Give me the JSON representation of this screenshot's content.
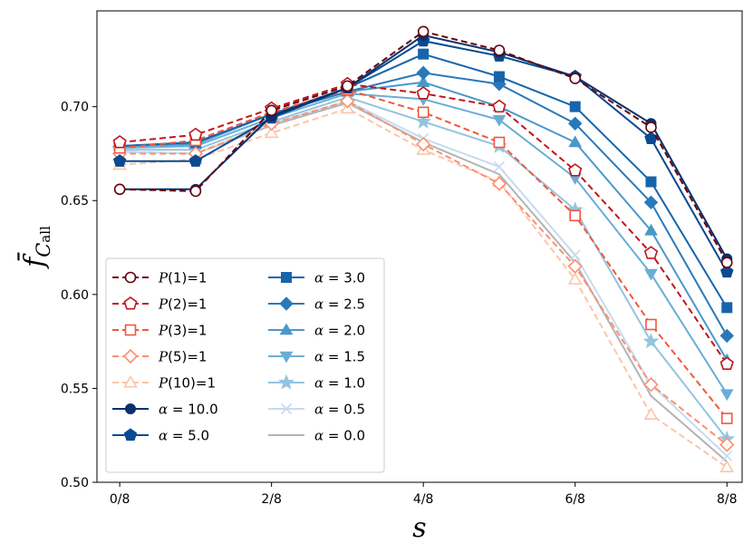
{
  "chart_data": {
    "type": "line",
    "xlabel": "s",
    "ylabel": "f̄",
    "ylabel_sub": "C",
    "ylabel_subsub": "all",
    "x": [
      0,
      1,
      2,
      3,
      4,
      5,
      6,
      7,
      8
    ],
    "xticks": [
      {
        "x": 0,
        "label": "0/8"
      },
      {
        "x": 2,
        "label": "2/8"
      },
      {
        "x": 4,
        "label": "4/8"
      },
      {
        "x": 6,
        "label": "6/8"
      },
      {
        "x": 8,
        "label": "8/8"
      }
    ],
    "yticks": [
      {
        "y": 0.5,
        "label": "0.50"
      },
      {
        "y": 0.55,
        "label": "0.55"
      },
      {
        "y": 0.6,
        "label": "0.60"
      },
      {
        "y": 0.65,
        "label": "0.65"
      },
      {
        "y": 0.7,
        "label": "0.70"
      }
    ],
    "xlim": [
      -0.3,
      8.2
    ],
    "ylim": [
      0.5,
      0.751
    ],
    "grid": false,
    "legend_position": "lower-left",
    "series": [
      {
        "name": "P(1)=1",
        "math": true,
        "color": "#67000d",
        "dash": true,
        "marker": "circle-open",
        "values": [
          0.656,
          0.655,
          0.698,
          0.711,
          0.74,
          0.73,
          0.715,
          0.689,
          0.617
        ]
      },
      {
        "name": "P(2)=1",
        "math": true,
        "color": "#c0161c",
        "dash": true,
        "marker": "pentagon-open",
        "values": [
          0.681,
          0.685,
          0.699,
          0.712,
          0.707,
          0.7,
          0.666,
          0.622,
          0.563
        ]
      },
      {
        "name": "P(3)=1",
        "math": true,
        "color": "#f0573f",
        "dash": true,
        "marker": "square-open",
        "values": [
          0.678,
          0.682,
          0.697,
          0.709,
          0.697,
          0.681,
          0.642,
          0.584,
          0.534
        ]
      },
      {
        "name": "P(5)=1",
        "math": true,
        "color": "#fc9070",
        "dash": true,
        "marker": "diamond-open",
        "values": [
          0.675,
          0.675,
          0.691,
          0.703,
          0.68,
          0.659,
          0.615,
          0.552,
          0.52
        ]
      },
      {
        "name": "P(10)=1",
        "math": true,
        "color": "#fcc5a9",
        "dash": true,
        "marker": "triangle-open",
        "values": [
          0.669,
          0.672,
          0.686,
          0.699,
          0.677,
          0.66,
          0.608,
          0.536,
          0.508
        ]
      },
      {
        "name": "α = 10.0",
        "color": "#08306b",
        "dash": false,
        "marker": "circle",
        "values": [
          0.656,
          0.656,
          0.695,
          0.71,
          0.738,
          0.729,
          0.716,
          0.691,
          0.619
        ]
      },
      {
        "name": "α = 5.0",
        "color": "#0a4a90",
        "dash": false,
        "marker": "pentagon",
        "values": [
          0.671,
          0.671,
          0.694,
          0.71,
          0.735,
          0.727,
          0.716,
          0.683,
          0.612
        ]
      },
      {
        "name": "α = 3.0",
        "color": "#1764ab",
        "dash": false,
        "marker": "square",
        "values": [
          0.679,
          0.681,
          0.696,
          0.71,
          0.728,
          0.716,
          0.7,
          0.66,
          0.593
        ]
      },
      {
        "name": "α = 2.5",
        "color": "#2979b9",
        "dash": false,
        "marker": "diamond",
        "values": [
          0.679,
          0.681,
          0.696,
          0.708,
          0.718,
          0.712,
          0.691,
          0.649,
          0.578
        ]
      },
      {
        "name": "α = 2.0",
        "color": "#4a98c9",
        "dash": false,
        "marker": "triangle",
        "values": [
          0.679,
          0.68,
          0.696,
          0.708,
          0.713,
          0.7,
          0.681,
          0.634,
          0.565
        ]
      },
      {
        "name": "α = 1.5",
        "color": "#6aaed6",
        "dash": false,
        "marker": "triangle-down",
        "values": [
          0.678,
          0.679,
          0.694,
          0.707,
          0.704,
          0.693,
          0.662,
          0.611,
          0.547
        ]
      },
      {
        "name": "α = 1.0",
        "color": "#94c4df",
        "dash": false,
        "marker": "star",
        "values": [
          0.677,
          0.677,
          0.692,
          0.705,
          0.692,
          0.679,
          0.645,
          0.575,
          0.523
        ]
      },
      {
        "name": "α = 0.5",
        "color": "#c6dbef",
        "dash": false,
        "marker": "x",
        "values": [
          0.676,
          0.675,
          0.691,
          0.703,
          0.683,
          0.668,
          0.621,
          0.552,
          0.514
        ]
      },
      {
        "name": "α = 0.0",
        "color": "#b3b3b3",
        "dash": false,
        "marker": "none",
        "values": [
          0.676,
          0.675,
          0.69,
          0.702,
          0.681,
          0.664,
          0.617,
          0.546,
          0.511
        ]
      }
    ]
  }
}
